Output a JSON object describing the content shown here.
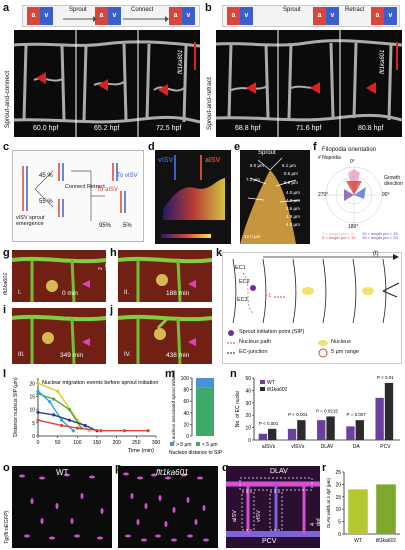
{
  "panel_labels": {
    "a": "a",
    "b": "b",
    "c": "c",
    "d": "d",
    "e": "e",
    "f": "f",
    "g": "g",
    "h": "h",
    "i": "i",
    "j": "j",
    "k": "k",
    "l": "l",
    "m": "m",
    "n": "n",
    "o": "o",
    "p": "p",
    "q": "q",
    "r": "r"
  },
  "panel_a": {
    "header_sprout": "Sprout",
    "header_connect": "Connect",
    "box_a": "a",
    "box_v": "v",
    "side_label": "Sprout-and-connect",
    "allele": "flt1ka601",
    "times": [
      "60.0 hpf",
      "65.2 hpf",
      "72.5 hpf"
    ]
  },
  "panel_b": {
    "header_sprout": "Sprout",
    "header_retract": "Retract",
    "box_a": "a",
    "box_v": "v",
    "side_label": "Sprout-and-retract",
    "allele": "flt1ka601",
    "times": [
      "68.8 hpf",
      "71.6 hpf",
      "80.8 hpf"
    ]
  },
  "panel_c": {
    "left_label": "vISV sprout emergence",
    "pct_top": "45 %",
    "pct_bot": "55 %",
    "mid_label": "Connect Retract",
    "to_aisv": "To aISV",
    "to_visv": "To vISV",
    "pct_aisv": "95%",
    "pct_visv": "5%"
  },
  "panel_d": {
    "visv": "vISV",
    "aisv": "aISV"
  },
  "panel_e": {
    "title": "Sprout",
    "measurements": [
      "8.0 µm",
      "6.1 µm",
      "8.5 µm",
      "7.1 µm",
      "5.9 µm",
      "4.0 µm",
      "4.3 µm",
      "3.6 µm",
      "4.9 µm",
      "4.9 µm",
      "12.0 µm"
    ]
  },
  "panel_f": {
    "title": "Filopodia orientation",
    "y_label": "# filopodia",
    "angles": [
      "0°",
      "90°",
      "180°",
      "270°"
    ],
    "growth": "Growth direction",
    "legend": [
      "0 < length µm < 5",
      "5 < length µm < 10",
      "10 < length µm < 15",
      "15 < length µm < 20"
    ]
  },
  "panel_g": {
    "allele": "flt1ka601",
    "time": "0 min",
    "scale": "2 µm",
    "roman": "I."
  },
  "panel_h": {
    "time": "188 min",
    "roman": "II."
  },
  "panel_i": {
    "time": "349 min",
    "roman": "III."
  },
  "panel_j": {
    "time": "438 min",
    "roman": "IV."
  },
  "panel_k": {
    "time_arrow": "(t)",
    "ec1": "EC1",
    "ec2": "EC2",
    "ec3": "EC3",
    "num": "~1",
    "legend": {
      "sip": "Sprout initiation point (SIP)",
      "nucleus_path": "Nucleus path",
      "ec_junction": "EC-junction",
      "nucleus": "Nucleus",
      "range": "5 µm range"
    }
  },
  "panel_o": {
    "label": "WT",
    "transgene": "Tg(fli:nEGFP)"
  },
  "panel_p": {
    "label": "flt1ka601"
  },
  "panel_q": {
    "dlav": "DLAV",
    "aisv": "aISV",
    "visv": "vISV",
    "pcv": "PCV",
    "dpf": "4 dpf"
  },
  "colors": {
    "red_vessel": "#d8453b",
    "blue_vessel": "#3a5fc9",
    "wt_bar": "#6b3fa0",
    "mutant_bar": "#2b2b2b",
    "r_wt": "#b5c832",
    "r_mut": "#7fa82e",
    "m_green": "#3daa6a",
    "m_blue": "#4a90d9"
  },
  "chart_data": [
    {
      "type": "line",
      "panel": "l",
      "title": "Nuclear migration events before sprout initiation",
      "xlabel": "Time (min)",
      "ylabel": "Distance nucleus SIP (µm)",
      "x_ticks": [
        "0",
        "50",
        "100",
        "150",
        "200",
        "250",
        "300"
      ],
      "xlim": [
        0,
        300
      ],
      "y_ticks": [
        "0",
        "5",
        "10",
        "15",
        "20"
      ],
      "ylim": [
        0,
        22
      ],
      "series": [
        {
          "color": "#e3c72a",
          "x": [
            0,
            50,
            100,
            130
          ],
          "y": [
            20,
            17,
            6,
            2
          ]
        },
        {
          "color": "#5aa83a",
          "x": [
            0,
            40,
            80,
            110
          ],
          "y": [
            16,
            14,
            10,
            3
          ]
        },
        {
          "color": "#29a9e0",
          "x": [
            0,
            30,
            60,
            90
          ],
          "y": [
            17,
            13,
            6,
            2
          ]
        },
        {
          "color": "#2a3c9e",
          "x": [
            0,
            40,
            80,
            120,
            150
          ],
          "y": [
            9,
            8,
            6,
            4,
            2
          ]
        },
        {
          "color": "#d8453b",
          "x": [
            0,
            60,
            100,
            160,
            220,
            280
          ],
          "y": [
            6,
            4,
            3,
            2,
            2,
            2
          ]
        }
      ]
    },
    {
      "type": "bar",
      "panel": "m",
      "ylabel": "% nucleus associated sprout initiation",
      "xlabel": "Nucleus distance to SIP",
      "y_ticks": [
        "0",
        "20",
        "40",
        "60",
        "80",
        "100"
      ],
      "ylim": [
        0,
        100
      ],
      "series": [
        {
          "name": "< 5 µm",
          "value": 83
        },
        {
          "name": "> 5 µm",
          "value": 17
        }
      ]
    },
    {
      "type": "bar",
      "panel": "n",
      "ylabel": "No. of EC nuclei",
      "categories": [
        "aISVs",
        "vISVs",
        "DLAV",
        "DA",
        "PCV"
      ],
      "ylim": [
        0,
        50
      ],
      "y_ticks": [
        "0",
        "10",
        "20",
        "30",
        "40",
        "50"
      ],
      "series": [
        {
          "name": "WT",
          "values": [
            5,
            9,
            16,
            11,
            34
          ]
        },
        {
          "name": "flt1ka601",
          "values": [
            9,
            16,
            19,
            16,
            46
          ]
        }
      ],
      "p_values": [
        "P < 0.001",
        "P < 0.001",
        "P = 0.0215",
        "P = 0.007",
        "P < 0.01"
      ]
    },
    {
      "type": "bar",
      "panel": "r",
      "ylabel": "DLAV width at 4 dpf (µm)",
      "categories": [
        "WT",
        "flt1ka601"
      ],
      "values": [
        18,
        20
      ],
      "ylim": [
        0,
        25
      ],
      "y_ticks": [
        "0",
        "5",
        "10",
        "15",
        "20",
        "25"
      ]
    }
  ]
}
